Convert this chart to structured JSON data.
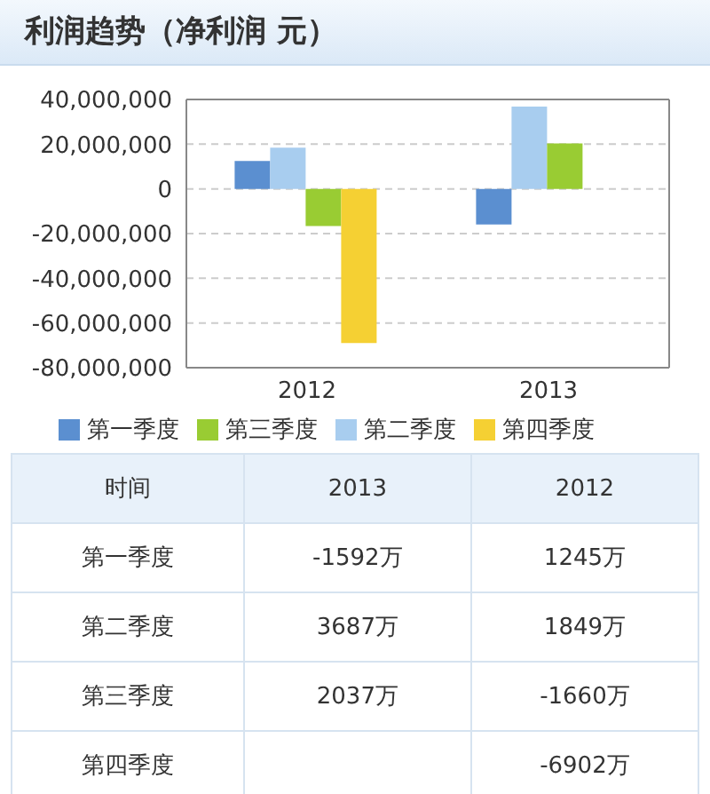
{
  "chart_data": {
    "type": "bar",
    "title": "利润趋势（净利润  元）",
    "categories": [
      "2012",
      "2013"
    ],
    "series": [
      {
        "name": "第一季度",
        "color": "#5b8fd0",
        "values": [
          12450000,
          -15920000
        ]
      },
      {
        "name": "第二季度",
        "color": "#a8cdef",
        "values": [
          18490000,
          36870000
        ]
      },
      {
        "name": "第三季度",
        "color": "#99cc33",
        "values": [
          -16600000,
          20370000
        ]
      },
      {
        "name": "第四季度",
        "color": "#f5d033",
        "values": [
          -69020000,
          null
        ]
      }
    ],
    "ylim": [
      -80000000,
      40000000
    ],
    "yticks": [
      {
        "value": -80000000,
        "label": "-80,000,000"
      },
      {
        "value": -60000000,
        "label": "-60,000,000"
      },
      {
        "value": -40000000,
        "label": "-40,000,000"
      },
      {
        "value": -20000000,
        "label": "-20,000,000"
      },
      {
        "value": 0,
        "label": "0"
      },
      {
        "value": 20000000,
        "label": "20,000,000"
      },
      {
        "value": 40000000,
        "label": "40,000,000"
      }
    ],
    "grid": "y",
    "legend": "bottom",
    "annotations": [
      "时间",
      "-1592万",
      "1245万",
      "3687万",
      "1849万",
      "2037万",
      "-1660万",
      "-6902万"
    ]
  }
}
